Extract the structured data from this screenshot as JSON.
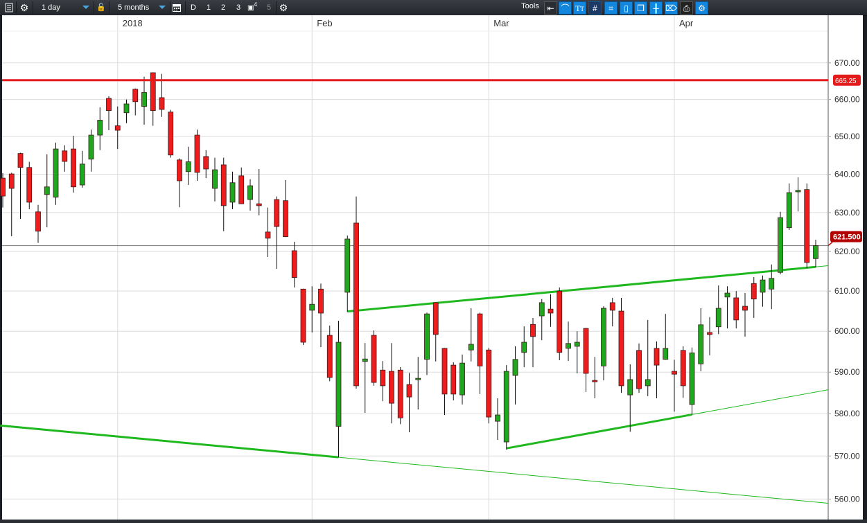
{
  "toolbar": {
    "interval": "1 day",
    "range": "5 months",
    "period_buttons": [
      "D",
      "1",
      "2",
      "3",
      "4",
      "5"
    ],
    "tools_label": "Tools",
    "icons_left": [
      "list-icon",
      "gear-icon",
      "lock-icon",
      "calendar-icon",
      "save-icon",
      "gear-icon"
    ],
    "tools": [
      "back-arrow-icon",
      "curve-icon",
      "text-icon",
      "grid-icon",
      "grid-pencil-icon",
      "candle-icon",
      "layers-icon",
      "bars-icon",
      "tag-icon",
      "print-icon",
      "settings-icon"
    ]
  },
  "colors": {
    "up": "#1fa81f",
    "down": "#ee1c1c",
    "hline": "#e41b1b",
    "trend": "#1fb81f",
    "price_badge": "#b30000"
  },
  "chart_data": {
    "type": "candlestick",
    "y_scale": "log",
    "ylim": [
      555.3,
      678.8
    ],
    "yticks": [
      "670.00",
      "660.00",
      "650.00",
      "640.00",
      "630.00",
      "620.00",
      "610.00",
      "600.00",
      "590.00",
      "580.00",
      "570.00",
      "560.00"
    ],
    "ytick_values": [
      670,
      660,
      650,
      640,
      630,
      620,
      610,
      600,
      590,
      580,
      570,
      560
    ],
    "grid": true,
    "month_labels": [
      {
        "label": "2018",
        "at_index": 13
      },
      {
        "label": "Feb",
        "at_index": 35
      },
      {
        "label": "Mar",
        "at_index": 55
      },
      {
        "label": "Apr",
        "at_index": 76
      }
    ],
    "ohlc": [
      [
        639.0,
        640.3,
        631.3,
        634.3
      ],
      [
        640.1,
        640.4,
        623.9,
        636.3
      ],
      [
        645.5,
        645.7,
        628.4,
        641.8
      ],
      [
        641.8,
        643.3,
        630.9,
        632.7
      ],
      [
        630.2,
        632.0,
        622.2,
        625.2
      ],
      [
        634.7,
        645.3,
        626.2,
        636.7
      ],
      [
        634.0,
        648.4,
        632.0,
        646.7
      ],
      [
        646.2,
        647.7,
        640.7,
        643.4
      ],
      [
        646.7,
        650.2,
        635.2,
        636.7
      ],
      [
        637.2,
        646.2,
        636.5,
        642.7
      ],
      [
        644.0,
        651.9,
        640.7,
        650.4
      ],
      [
        650.4,
        657.9,
        646.4,
        654.4
      ],
      [
        660.3,
        660.9,
        651.7,
        657.0
      ],
      [
        652.9,
        658.1,
        646.7,
        651.7
      ],
      [
        656.4,
        660.0,
        653.6,
        658.8
      ],
      [
        662.8,
        663.0,
        655.7,
        659.4
      ],
      [
        658.1,
        666.2,
        653.2,
        661.9
      ],
      [
        667.3,
        667.4,
        652.9,
        657.0
      ],
      [
        660.5,
        667.0,
        655.3,
        657.3
      ],
      [
        656.6,
        657.2,
        644.4,
        645.1
      ],
      [
        643.8,
        644.2,
        631.4,
        638.3
      ],
      [
        640.7,
        647.3,
        637.2,
        643.3
      ],
      [
        650.4,
        651.9,
        638.3,
        640.5
      ],
      [
        644.7,
        646.4,
        639.0,
        641.4
      ],
      [
        636.3,
        644.4,
        632.9,
        641.2
      ],
      [
        642.5,
        644.4,
        625.2,
        631.8
      ],
      [
        632.7,
        640.7,
        630.9,
        637.8
      ],
      [
        639.6,
        641.8,
        632.2,
        632.3
      ],
      [
        633.4,
        638.7,
        630.5,
        637.0
      ],
      [
        632.3,
        641.4,
        629.3,
        631.8
      ],
      [
        625.0,
        631.3,
        618.6,
        623.4
      ],
      [
        633.4,
        634.2,
        615.6,
        626.4
      ],
      [
        633.1,
        638.5,
        623.7,
        623.8
      ],
      [
        620.2,
        622.5,
        610.9,
        613.4
      ],
      [
        610.5,
        610.6,
        596.6,
        597.3
      ],
      [
        605.2,
        611.2,
        599.7,
        606.7
      ],
      [
        610.5,
        611.9,
        596.1,
        604.5
      ],
      [
        599.0,
        601.4,
        587.8,
        588.7
      ],
      [
        577.0,
        602.6,
        569.7,
        597.3
      ],
      [
        609.7,
        624.1,
        604.8,
        623.2
      ],
      [
        627.3,
        634.2,
        586.0,
        586.7
      ],
      [
        592.6,
        597.1,
        580.2,
        593.2
      ],
      [
        599.0,
        600.2,
        586.7,
        587.5
      ],
      [
        590.5,
        592.7,
        583.0,
        586.7
      ],
      [
        590.2,
        597.1,
        577.7,
        582.5
      ],
      [
        590.5,
        591.2,
        577.5,
        579.0
      ],
      [
        587.0,
        589.8,
        575.6,
        584.0
      ],
      [
        588.2,
        593.7,
        581.0,
        588.5
      ],
      [
        593.1,
        604.6,
        589.3,
        604.3
      ],
      [
        607.1,
        607.2,
        592.6,
        599.2
      ],
      [
        595.8,
        595.9,
        579.7,
        584.7
      ],
      [
        591.7,
        592.4,
        583.2,
        584.7
      ],
      [
        584.5,
        594.3,
        582.2,
        592.2
      ],
      [
        595.4,
        605.7,
        592.6,
        596.8
      ],
      [
        604.3,
        604.6,
        584.7,
        591.5
      ],
      [
        595.4,
        595.9,
        577.7,
        579.2
      ],
      [
        578.2,
        583.7,
        573.8,
        579.7
      ],
      [
        573.3,
        591.7,
        571.5,
        590.2
      ],
      [
        589.2,
        596.3,
        582.2,
        593.1
      ],
      [
        594.8,
        601.2,
        591.2,
        597.3
      ],
      [
        601.7,
        603.3,
        591.2,
        598.7
      ],
      [
        603.8,
        608.0,
        597.8,
        607.1
      ],
      [
        605.5,
        609.2,
        601.1,
        604.5
      ],
      [
        610.0,
        610.9,
        592.9,
        594.8
      ],
      [
        595.8,
        602.4,
        592.7,
        597.0
      ],
      [
        596.3,
        600.0,
        589.7,
        597.3
      ],
      [
        600.7,
        600.8,
        585.2,
        589.7
      ],
      [
        588.0,
        593.7,
        583.7,
        587.7
      ],
      [
        591.5,
        606.2,
        588.0,
        605.7
      ],
      [
        607.1,
        608.3,
        601.2,
        605.2
      ],
      [
        605.0,
        608.3,
        585.0,
        586.7
      ],
      [
        584.5,
        591.9,
        575.7,
        588.2
      ],
      [
        595.3,
        597.0,
        585.0,
        586.0
      ],
      [
        586.7,
        602.8,
        584.2,
        588.2
      ],
      [
        595.8,
        597.5,
        583.7,
        591.7
      ],
      [
        593.1,
        604.3,
        593.0,
        595.8
      ],
      [
        590.2,
        593.0,
        580.5,
        589.5
      ],
      [
        595.3,
        596.3,
        583.8,
        586.7
      ],
      [
        582.2,
        596.0,
        579.8,
        594.7
      ],
      [
        592.0,
        605.7,
        590.2,
        601.6
      ],
      [
        599.7,
        603.5,
        594.1,
        599.2
      ],
      [
        601.1,
        611.4,
        599.3,
        605.7
      ],
      [
        608.5,
        611.2,
        600.7,
        609.5
      ],
      [
        608.3,
        610.0,
        600.7,
        602.8
      ],
      [
        606.2,
        609.5,
        598.7,
        605.2
      ],
      [
        611.9,
        613.5,
        603.3,
        608.0
      ],
      [
        609.7,
        613.9,
        606.1,
        612.8
      ],
      [
        610.5,
        616.7,
        605.5,
        613.2
      ],
      [
        614.7,
        630.2,
        614.2,
        628.7
      ],
      [
        626.1,
        637.6,
        625.5,
        635.2
      ],
      [
        635.4,
        639.2,
        630.3,
        635.8
      ],
      [
        636.0,
        637.6,
        615.8,
        617.2
      ],
      [
        618.2,
        623.0,
        616.0,
        621.5
      ]
    ],
    "horizontal_line": {
      "value": 665.25,
      "label": "665.25"
    },
    "current_price": {
      "value": 621.5,
      "label": "621.500"
    },
    "trendlines": [
      {
        "from": [
          -0.3,
          577.2
        ],
        "to": [
          38,
          569.7
        ],
        "extend_right": true
      },
      {
        "from": [
          39,
          604.9
        ],
        "to": [
          92,
          616.1
        ],
        "extend_right": true
      },
      {
        "from": [
          57,
          571.8
        ],
        "to": [
          78,
          579.8
        ],
        "extend_right": true
      }
    ]
  }
}
